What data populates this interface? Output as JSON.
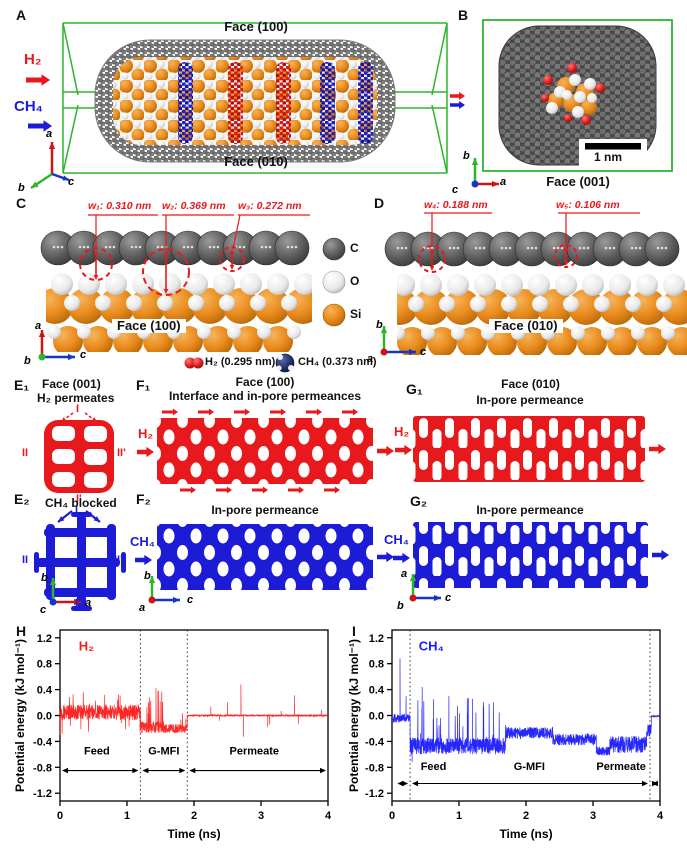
{
  "palette": {
    "red": "#e8191c",
    "blue": "#1c1cd6",
    "green": "#2db52d",
    "orange": "#e8891a",
    "gray_atom": "#5a5a5a",
    "navy": "#1b2a5e"
  },
  "panels": {
    "A": {
      "label": "A",
      "face_top": "Face (100)",
      "face_bottom": "Face (010)",
      "gas_h2": "H₂",
      "gas_ch4": "CH₄",
      "axis_up": "a",
      "axis_left": "b",
      "axis_right": "c"
    },
    "B": {
      "label": "B",
      "face": "Face (001)",
      "scale_bar": "1 nm",
      "axis_up": "b",
      "axis_right": "a",
      "axis_dot": "c"
    },
    "C": {
      "label": "C",
      "face": "Face (100)",
      "w1": "w₁: 0.310 nm",
      "w2": "w₂: 0.369 nm",
      "w3": "w₃: 0.272 nm",
      "axis_up": "a",
      "axis_right": "c",
      "axis_dot": "b"
    },
    "D": {
      "label": "D",
      "face": "Face (010)",
      "w4": "w₄: 0.188 nm",
      "w5": "w₅: 0.106 nm",
      "axis_up": "b",
      "axis_right": "c",
      "axis_dot": "a"
    },
    "E1": {
      "label": "E₁",
      "title": "Face (001)",
      "subtitle": "H₂ permeates",
      "m_top": "I",
      "m_left": "II",
      "m_right": "II'",
      "m_bottom": "I'"
    },
    "E2": {
      "label": "E₂",
      "subtitle": "CH₄ blocked",
      "m_top": "I",
      "m_left": "II",
      "m_right": "II'",
      "m_bottom": "I'",
      "axis_up": "b",
      "axis_right": "a",
      "axis_dot": "c"
    },
    "F1": {
      "label": "F₁",
      "title": "Face (100)",
      "subtitle": "Interface and in-pore permeances",
      "gas": "H₂"
    },
    "F2": {
      "label": "F₂",
      "subtitle": "In-pore permeance",
      "gas": "CH₄",
      "axis_up": "b",
      "axis_right": "c",
      "axis_dot": "a"
    },
    "G1": {
      "label": "G₁",
      "title": "Face (010)",
      "subtitle": "In-pore permeance",
      "gas": "H₂"
    },
    "G2": {
      "label": "G₂",
      "subtitle": "In-pore permeance",
      "gas": "CH₄",
      "axis_up": "a",
      "axis_right": "c",
      "axis_dot": "b"
    }
  },
  "atom_legend": [
    {
      "symbol": "C",
      "color": "#5a5a5a"
    },
    {
      "symbol": "O",
      "color": "#f0f0f0"
    },
    {
      "symbol": "Si",
      "color": "#e8891a"
    }
  ],
  "molecule_legend": {
    "h2": "H₂ (0.295 nm)",
    "h2_color": "#e02020",
    "ch4": "CH₄ (0.373 nm)",
    "ch4_color": "#1b2a5e"
  },
  "chart_data": [
    {
      "id": "H",
      "type": "line",
      "panel_label": "H",
      "series_label": "H₂",
      "color": "#ff1a1a",
      "seed": 13,
      "xlabel": "Time (ns)",
      "ylabel": "Potential energy (kJ mol⁻¹)",
      "xlim": [
        0,
        4
      ],
      "axis_ylim": [
        -1.32,
        1.32
      ],
      "xticks": [
        0,
        1,
        2,
        3,
        4
      ],
      "yticks": [
        -1.2,
        -0.8,
        -0.4,
        0.0,
        0.4,
        0.8,
        1.2
      ],
      "boundaries": [
        1.2,
        1.9
      ],
      "arrow_y": -0.85,
      "label_y": -0.6,
      "series_label_pos": [
        0.28,
        1.0
      ],
      "regions": [
        {
          "label": "Feed",
          "from": 0,
          "to": 1.2,
          "label_x": 0.55
        },
        {
          "label": "G-MFI",
          "from": 1.2,
          "to": 1.9,
          "label_x": 1.55
        },
        {
          "label": "Permeate",
          "from": 1.9,
          "to": 4.0,
          "label_x": 2.9
        }
      ],
      "segments": [
        {
          "t0": 0.0,
          "t1": 1.2,
          "mean": 0.05,
          "amp": 0.12,
          "spike_prob": 0.05,
          "spike_amp": 0.38
        },
        {
          "t0": 1.2,
          "t1": 1.55,
          "mean": -0.18,
          "amp": 0.09,
          "spike_prob": 0.12,
          "spike_amp": 0.6,
          "spike_dir": 1
        },
        {
          "t0": 1.55,
          "t1": 1.9,
          "mean": -0.2,
          "amp": 0.07,
          "spike_prob": 0.02,
          "spike_amp": 0.25,
          "spike_dir": 1
        },
        {
          "t0": 1.9,
          "t1": 4.0,
          "mean": 0.0,
          "amp": 0.012
        }
      ],
      "spikes": [
        [
          2.25,
          0.14
        ],
        [
          2.38,
          -0.08
        ],
        [
          2.5,
          0.2
        ],
        [
          2.7,
          0.48
        ],
        [
          2.74,
          -0.33
        ],
        [
          3.1,
          -0.18
        ],
        [
          3.13,
          -0.14
        ],
        [
          3.3,
          0.07
        ],
        [
          3.5,
          0.31
        ],
        [
          3.56,
          -0.13
        ],
        [
          3.9,
          0.09
        ]
      ]
    },
    {
      "id": "I",
      "type": "line",
      "panel_label": "I",
      "series_label": "CH₄",
      "color": "#1a1aff",
      "seed": 29,
      "xlabel": "Time (ns)",
      "ylabel": "Potential energy (kJ mol⁻¹)",
      "xlim": [
        0,
        4
      ],
      "axis_ylim": [
        -1.32,
        1.32
      ],
      "xticks": [
        0,
        1,
        2,
        3,
        4
      ],
      "yticks": [
        -1.2,
        -0.8,
        -0.4,
        0.0,
        0.4,
        0.8,
        1.2
      ],
      "boundaries": [
        0.27,
        3.85
      ],
      "arrow_y": -1.05,
      "label_y": -0.84,
      "series_label_pos": [
        0.4,
        1.0
      ],
      "regions": [
        {
          "label": "Feed",
          "from": 0.05,
          "to": 0.27,
          "label_x": 0.62
        },
        {
          "label": "G-MFI",
          "from": 0.27,
          "to": 3.85,
          "label_x": 2.05
        },
        {
          "label": "Permeate",
          "from": 3.85,
          "to": 4.0,
          "label_x": 3.42
        }
      ],
      "segments": [
        {
          "t0": 0.0,
          "t1": 0.27,
          "mean": -0.04,
          "amp": 0.07
        },
        {
          "t0": 0.27,
          "t1": 1.7,
          "mean": -0.47,
          "amp": 0.13,
          "spike_prob": 0.07,
          "spike_amp": 0.75,
          "spike_dir": 1
        },
        {
          "t0": 1.7,
          "t1": 2.4,
          "mean": -0.27,
          "amp": 0.09
        },
        {
          "t0": 2.4,
          "t1": 3.05,
          "mean": -0.37,
          "amp": 0.09
        },
        {
          "t0": 3.05,
          "t1": 3.25,
          "mean": -0.55,
          "amp": 0.07
        },
        {
          "t0": 3.25,
          "t1": 3.8,
          "mean": -0.45,
          "amp": 0.13
        },
        {
          "t0": 3.8,
          "t1": 3.87,
          "mean": -0.25,
          "amp": 0.12
        },
        {
          "t0": 3.87,
          "t1": 4.0,
          "mean": -0.01,
          "amp": 0.012
        }
      ],
      "spikes": [
        [
          0.12,
          0.88
        ],
        [
          0.21,
          0.3
        ],
        [
          0.3,
          -0.72
        ],
        [
          0.45,
          0.44
        ],
        [
          0.62,
          0.25
        ],
        [
          0.85,
          0.3
        ],
        [
          1.2,
          0.26
        ],
        [
          1.45,
          0.18
        ]
      ]
    }
  ]
}
